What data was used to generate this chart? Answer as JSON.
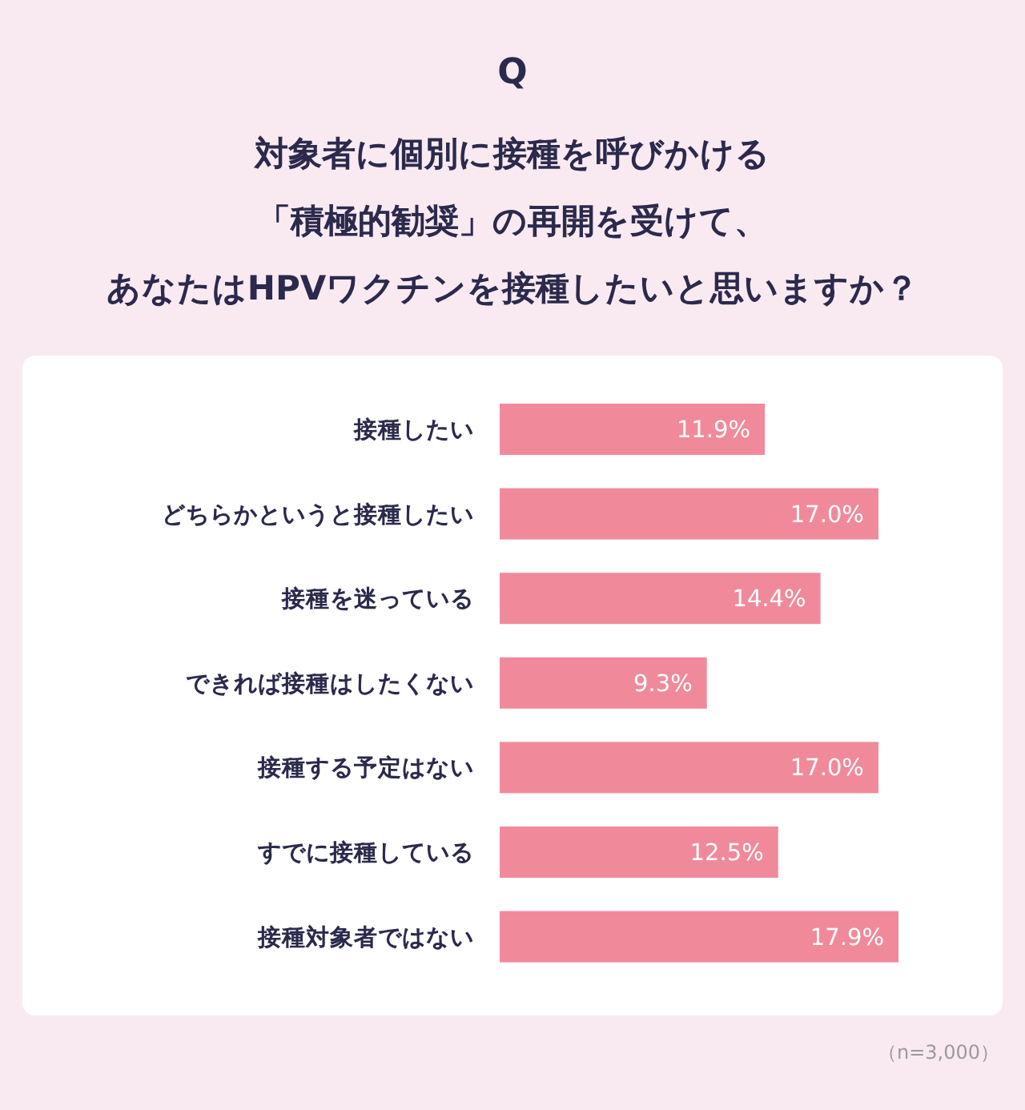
{
  "chart_data": {
    "type": "bar",
    "orientation": "horizontal",
    "title": "Q",
    "subtitle": "対象者に個別に接種を呼びかける「積極的勧奨」の再開を受けて、あなたはHPVワクチンを接種したいと思いますか？",
    "categories": [
      "接種したい",
      "どちらかというと接種したい",
      "接種を迷っている",
      "できれば接種はしたくない",
      "接種する予定はない",
      "すでに接種している",
      "接種対象者ではない"
    ],
    "values": [
      11.9,
      17.0,
      14.4,
      9.3,
      17.0,
      12.5,
      17.9
    ],
    "value_labels": [
      "11.9%",
      "17.0%",
      "14.4%",
      "9.3%",
      "17.0%",
      "12.5%",
      "17.9%"
    ],
    "color": "#f08a9b",
    "annotations": [
      "（n=3,000）"
    ]
  }
}
